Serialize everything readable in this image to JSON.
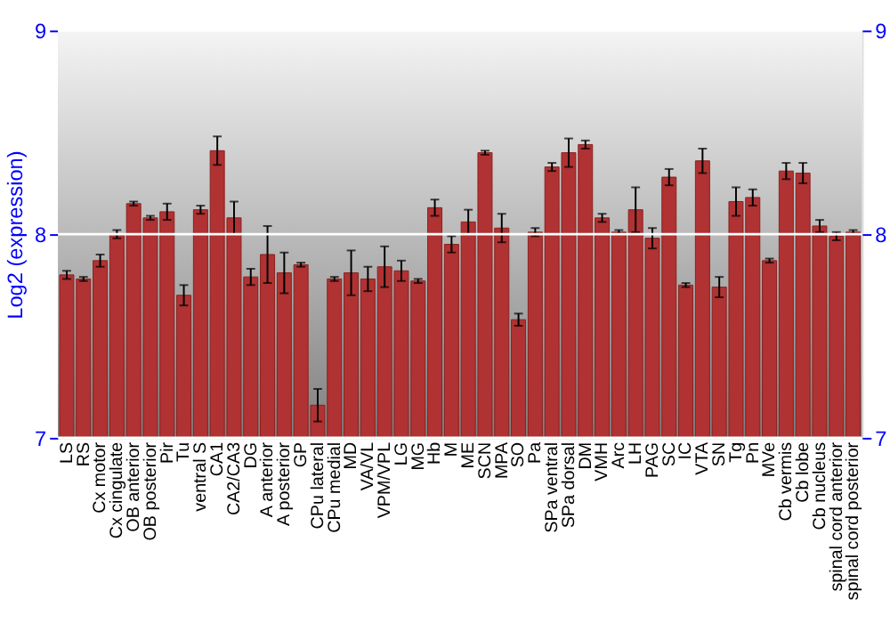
{
  "chart_data": {
    "type": "bar",
    "ylabel": "Log2 (expression)",
    "categories": [
      "LS",
      "RS",
      "Cx motor",
      "Cx cingulate",
      "OB anterior",
      "OB posterior",
      "Pir",
      "Tu",
      "ventral S",
      "CA1",
      "CA2/CA3",
      "DG",
      "A anterior",
      "A posterior",
      "GP",
      "CPu lateral",
      "CPu medial",
      "MD",
      "VA/VL",
      "VPM/VPL",
      "LG",
      "MG",
      "Hb",
      "M",
      "ME",
      "SCN",
      "MPA",
      "SO",
      "Pa",
      "SPa ventral",
      "SPa dorsal",
      "DM",
      "VMH",
      "Arc",
      "LH",
      "PAG",
      "SC",
      "IC",
      "VTA",
      "SN",
      "Tg",
      "Pn",
      "MVe",
      "Cb vermis",
      "Cb lobe",
      "Cb nucleus",
      "spinal cord anterior",
      "spinal cord posterior"
    ],
    "values": [
      7.8,
      7.78,
      7.87,
      8.0,
      8.15,
      8.08,
      8.11,
      7.7,
      8.12,
      8.41,
      8.08,
      7.79,
      7.9,
      7.81,
      7.85,
      7.16,
      7.78,
      7.81,
      7.78,
      7.84,
      7.82,
      7.77,
      8.13,
      7.95,
      8.06,
      8.4,
      8.03,
      7.58,
      8.01,
      8.33,
      8.4,
      8.44,
      8.08,
      8.01,
      8.12,
      7.98,
      8.28,
      7.75,
      8.36,
      7.74,
      8.16,
      8.18,
      7.87,
      8.31,
      8.3,
      8.04,
      7.99,
      8.01
    ],
    "errors": [
      0.02,
      0.01,
      0.03,
      0.02,
      0.01,
      0.01,
      0.04,
      0.05,
      0.02,
      0.07,
      0.08,
      0.04,
      0.14,
      0.1,
      0.01,
      0.08,
      0.01,
      0.11,
      0.06,
      0.1,
      0.05,
      0.01,
      0.04,
      0.04,
      0.06,
      0.01,
      0.07,
      0.03,
      0.02,
      0.02,
      0.07,
      0.02,
      0.02,
      0.01,
      0.11,
      0.05,
      0.04,
      0.01,
      0.06,
      0.05,
      0.07,
      0.04,
      0.01,
      0.04,
      0.05,
      0.03,
      0.02,
      0.01
    ],
    "color": "#b03232",
    "ylim": [
      7,
      9
    ],
    "yticks": [
      7,
      8,
      9
    ],
    "y2lim": [
      7,
      9
    ],
    "y2ticks": [
      7,
      8,
      9
    ],
    "grid": "y"
  }
}
